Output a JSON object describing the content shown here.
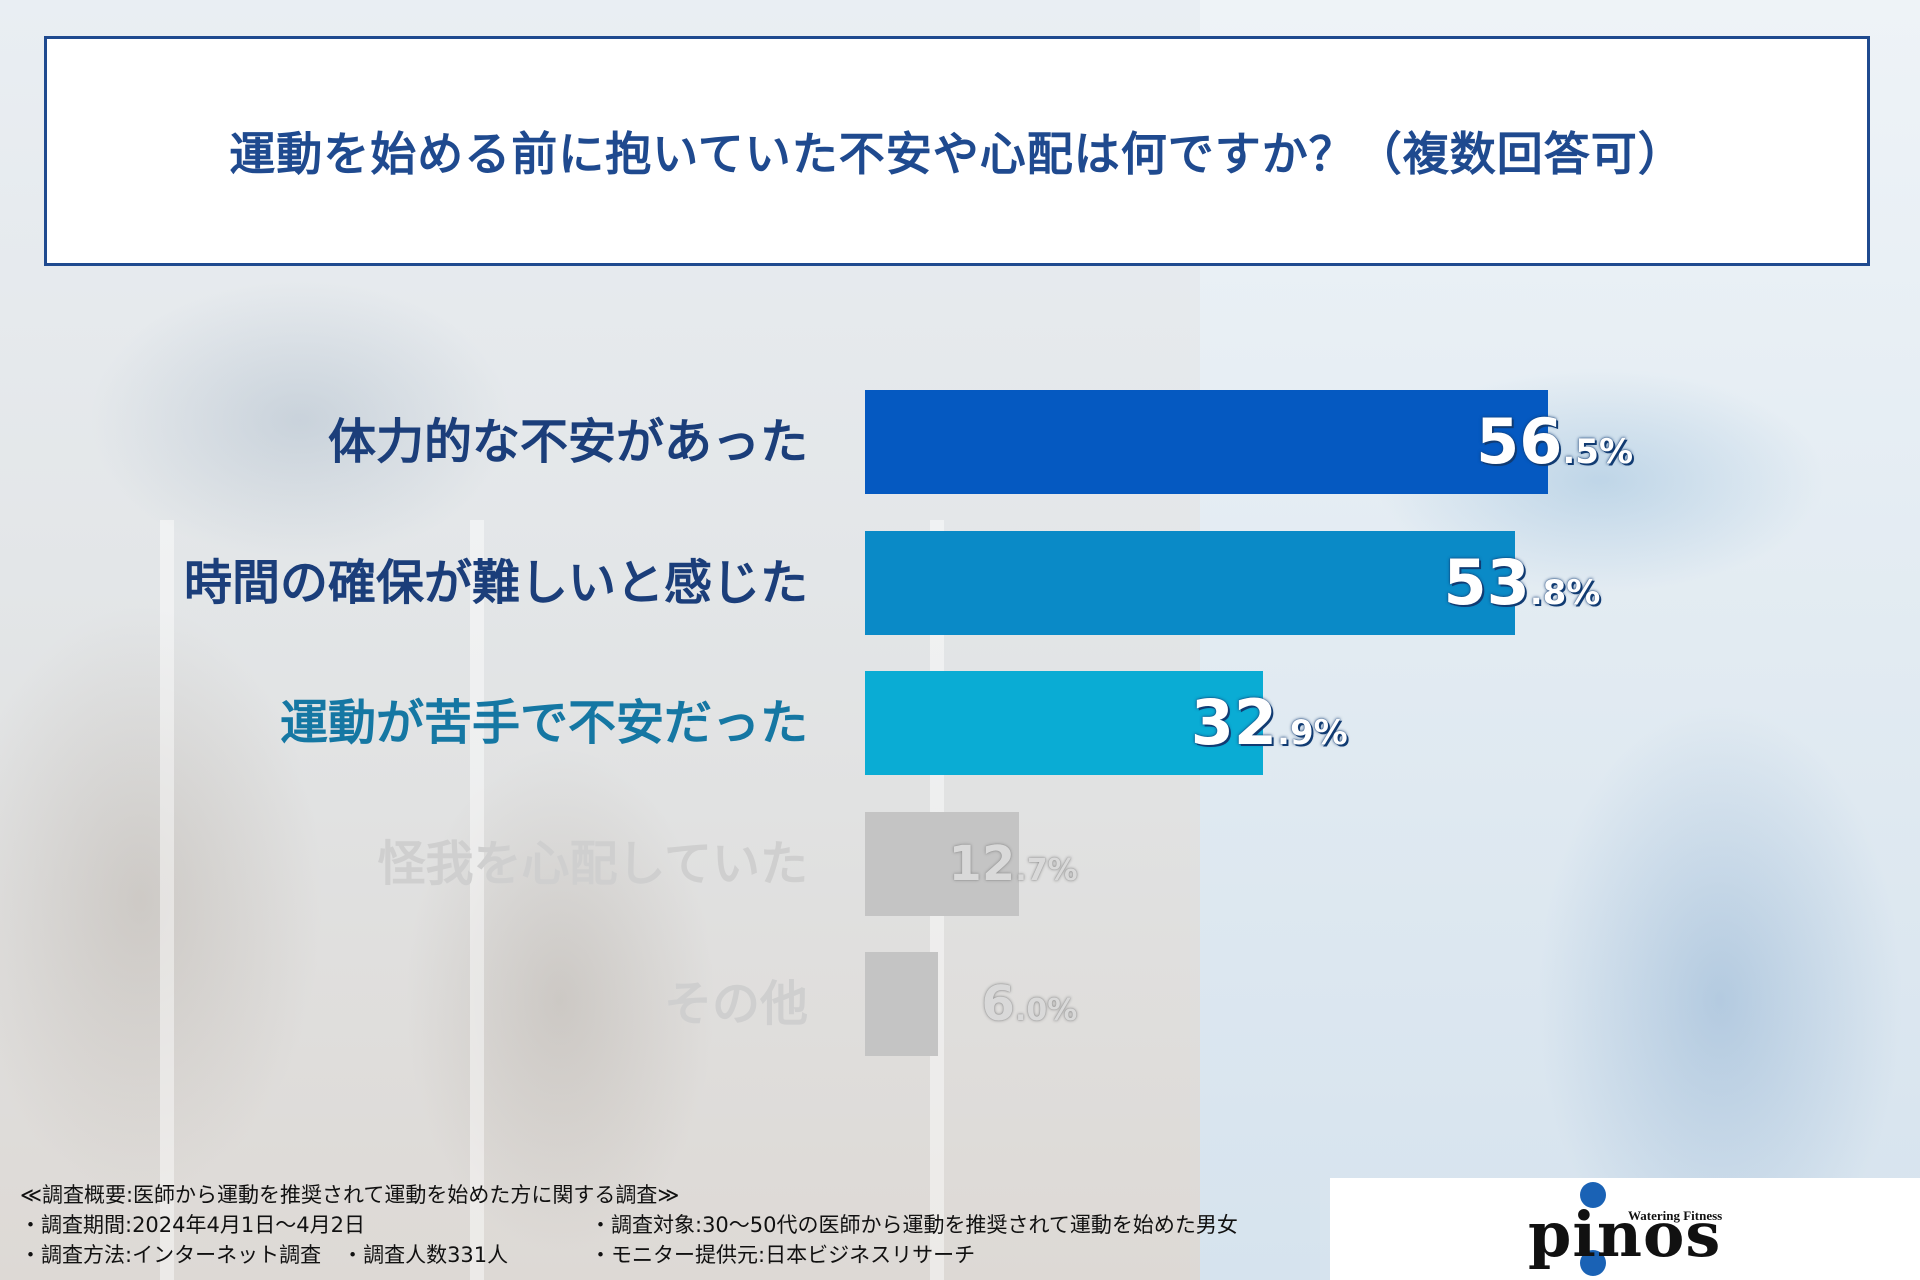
{
  "title": "運動を始める前に抱いていた不安や心配は何ですか？（複数回答可）",
  "chart_data": {
    "type": "bar",
    "orientation": "horizontal",
    "title": "運動を始める前に抱いていた不安や心配は何ですか？（複数回答可）",
    "unit": "%",
    "xlim": [
      0,
      100
    ],
    "grid": false,
    "categories": [
      "体力的な不安があった",
      "時間の確保が難しいと感じた",
      "運動が苦手で不安だった",
      "怪我を心配していた",
      "その他"
    ],
    "values": [
      56.5,
      53.8,
      32.9,
      12.7,
      6.0
    ],
    "value_labels": [
      {
        "int": "56",
        "dec": ".5",
        "pct": "%"
      },
      {
        "int": "53",
        "dec": ".8",
        "pct": "%"
      },
      {
        "int": "32",
        "dec": ".9",
        "pct": "%"
      },
      {
        "int": "12",
        "dec": ".7",
        "pct": "%"
      },
      {
        "int": "6",
        "dec": ".0",
        "pct": "%"
      }
    ],
    "bar_colors": [
      "#0559c1",
      "#0a8ac7",
      "#0aacd4",
      "#c4c4c4",
      "#c4c4c4"
    ],
    "label_colors": [
      "#1b3e7a",
      "#1b3e7a",
      "#1577a3",
      "#cfcfcf",
      "#cfcfcf"
    ]
  },
  "notes": {
    "heading": "≪調査概要:医師から運動を推奨されて運動を始めた方に関する調査≫",
    "period": "・調査期間:2024年4月1日〜4月2日",
    "target": "・調査対象:30〜50代の医師から運動を推奨されて運動を始めた男女",
    "method": "・調査方法:インターネット調査　・調査人数331人",
    "provider": "・モニター提供元:日本ビジネスリサーチ"
  },
  "logo": {
    "word": "pinos",
    "tagline": "Watering Fitness",
    "accent": "#1a62b5"
  }
}
